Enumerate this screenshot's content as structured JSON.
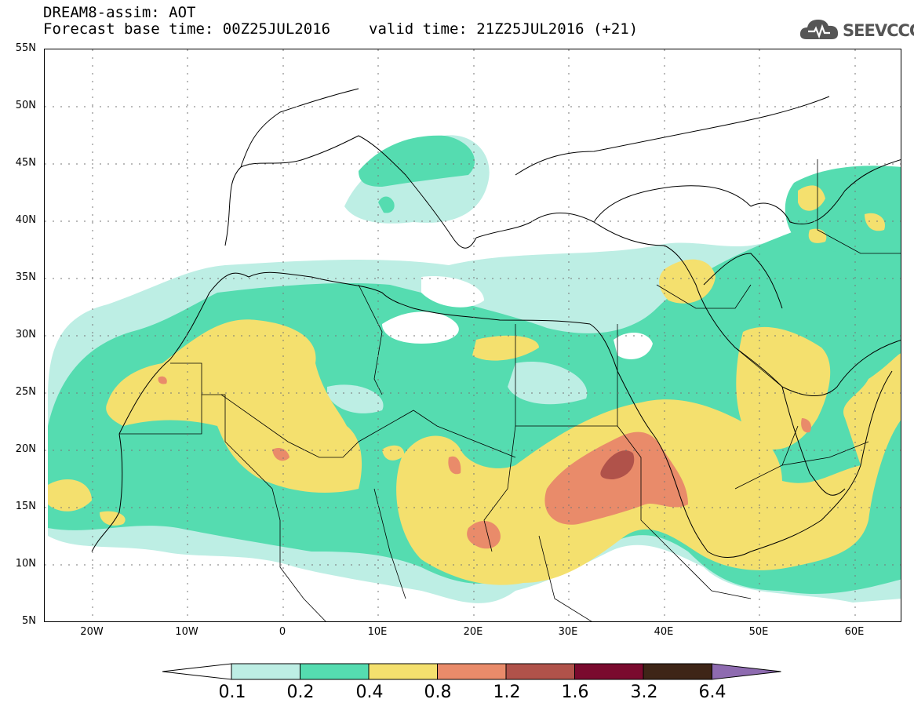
{
  "header": {
    "line1": "DREAM8-assim: AOT",
    "line2_left": "Forecast base time: 00Z25JUL2016",
    "line2_right": "valid time: 21Z25JUL2016 (+21)",
    "logo_text": "SEEVCCC"
  },
  "map": {
    "lat_range": [
      5,
      55
    ],
    "lon_range": [
      -25,
      65
    ],
    "lat_labels": [
      "55N",
      "50N",
      "45N",
      "40N",
      "35N",
      "30N",
      "25N",
      "20N",
      "15N",
      "10N",
      "5N"
    ],
    "lon_labels": [
      "20W",
      "10W",
      "0",
      "10E",
      "20E",
      "30E",
      "40E",
      "50E",
      "60E"
    ],
    "gridlines": "dotted"
  },
  "colorbar": {
    "levels": [
      "0.1",
      "0.2",
      "0.4",
      "0.8",
      "1.2",
      "1.6",
      "3.2",
      "6.4"
    ],
    "colors": [
      "#ffffff",
      "#bdeee4",
      "#55dcb0",
      "#f4e06e",
      "#e98b6a",
      "#b0524a",
      "#7a0a2e",
      "#3e2517",
      "#8e6bb0"
    ]
  }
}
